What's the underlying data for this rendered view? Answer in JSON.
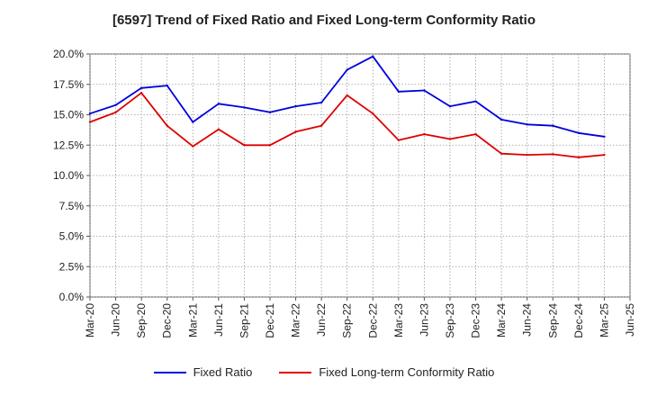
{
  "chart_data": {
    "type": "line",
    "title": "[6597]  Trend of Fixed Ratio and Fixed Long-term Conformity Ratio",
    "xlabel": "",
    "ylabel": "",
    "ylim": [
      0,
      20
    ],
    "y_ticks": [
      "0.0%",
      "2.5%",
      "5.0%",
      "7.5%",
      "10.0%",
      "12.5%",
      "15.0%",
      "17.5%",
      "20.0%"
    ],
    "categories": [
      "Mar-20",
      "Jun-20",
      "Sep-20",
      "Dec-20",
      "Mar-21",
      "Jun-21",
      "Sep-21",
      "Dec-21",
      "Mar-22",
      "Jun-22",
      "Sep-22",
      "Dec-22",
      "Mar-23",
      "Jun-23",
      "Sep-23",
      "Dec-23",
      "Mar-24",
      "Jun-24",
      "Sep-24",
      "Dec-24",
      "Mar-25",
      "Jun-25"
    ],
    "grid": true,
    "legend_position": "bottom",
    "series": [
      {
        "name": "Fixed Ratio",
        "color": "#0000dd",
        "values": [
          15.1,
          15.8,
          17.2,
          17.4,
          14.4,
          15.9,
          15.6,
          15.2,
          15.7,
          16.0,
          18.7,
          19.8,
          16.9,
          17.0,
          15.7,
          16.1,
          14.6,
          14.2,
          14.1,
          13.5,
          13.2,
          null
        ]
      },
      {
        "name": "Fixed Long-term Conformity Ratio",
        "color": "#dd0000",
        "values": [
          14.4,
          15.2,
          16.8,
          14.1,
          12.4,
          13.8,
          12.5,
          12.5,
          13.6,
          14.1,
          16.6,
          15.1,
          12.9,
          13.4,
          13.0,
          13.4,
          11.8,
          11.7,
          11.75,
          11.5,
          11.7,
          null
        ]
      }
    ]
  }
}
